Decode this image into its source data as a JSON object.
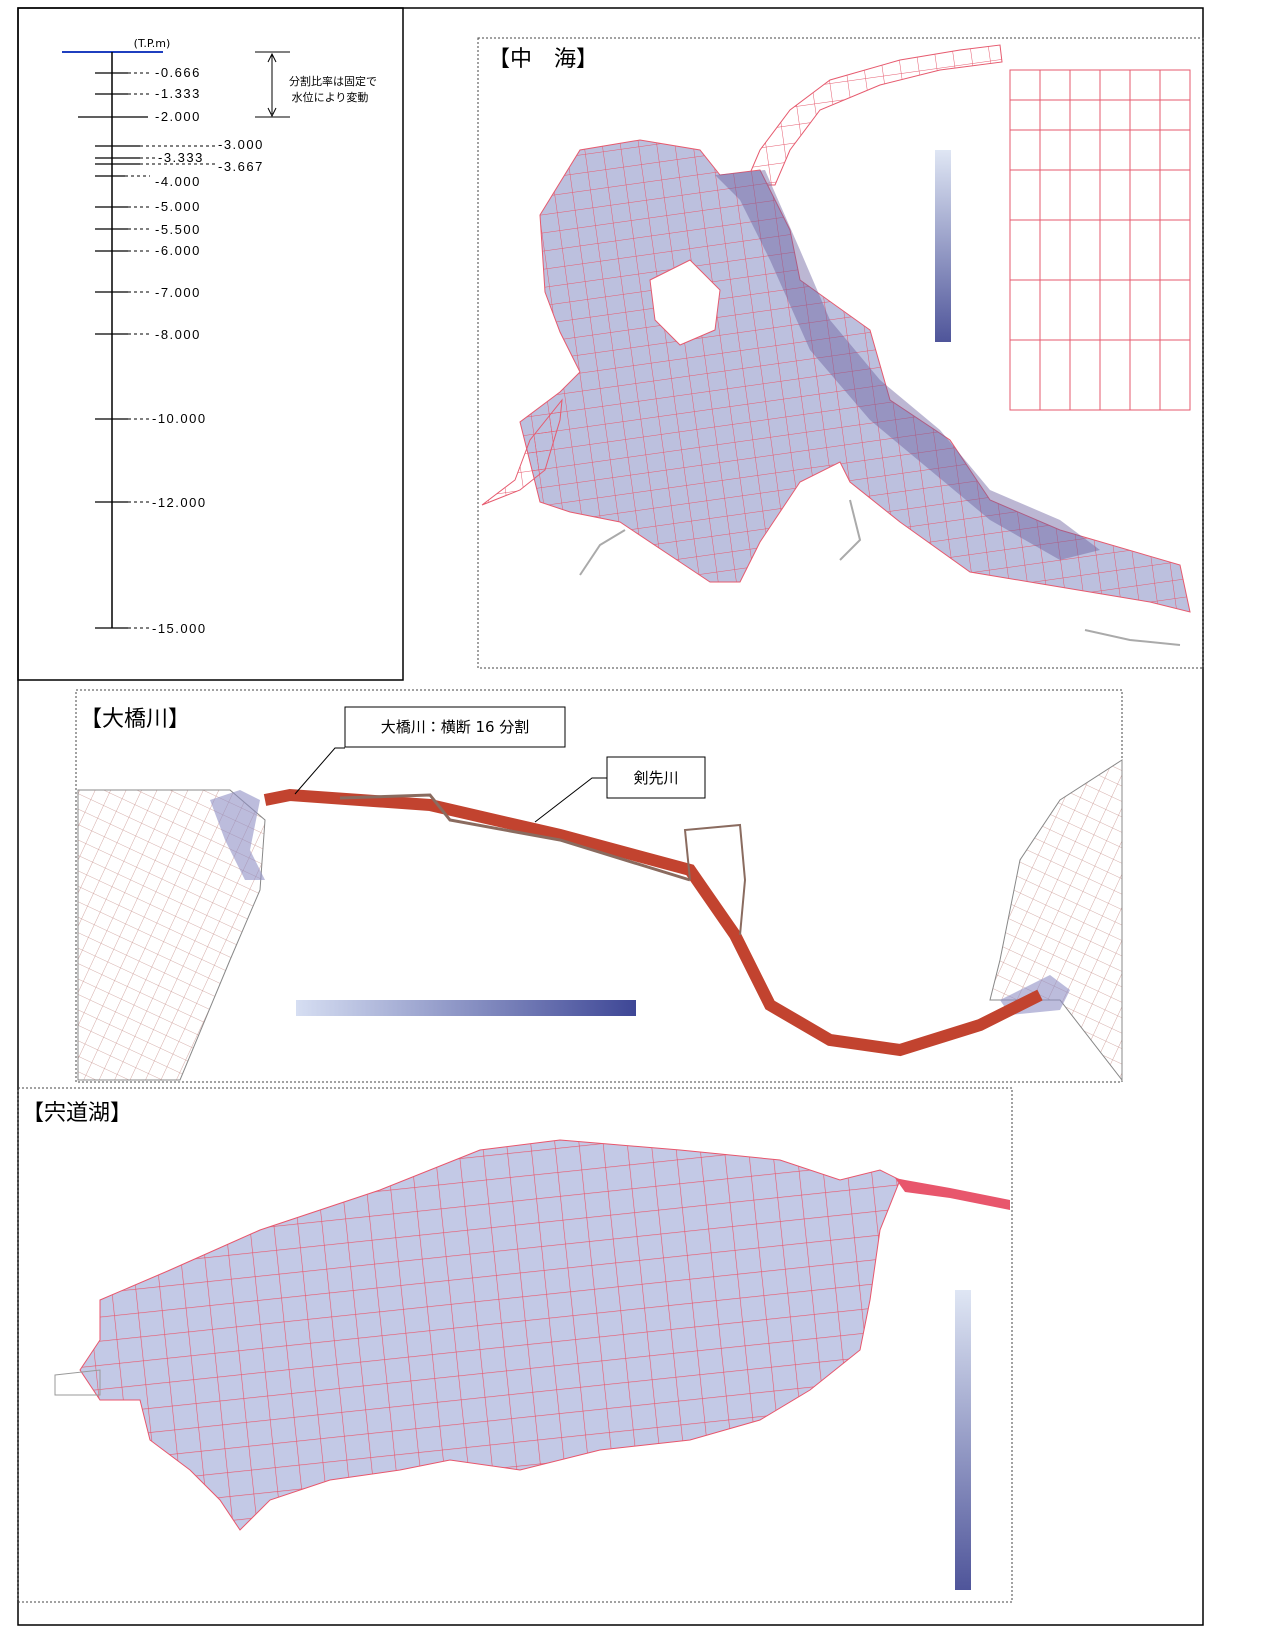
{
  "layer_scale": {
    "unit": "(T.P.m)",
    "levels": [
      "-0.666",
      "-1.333",
      "-2.000",
      "-3.000",
      "-3.333",
      "-3.667",
      "-4.000",
      "-5.000",
      "-5.500",
      "-6.000",
      "-7.000",
      "-8.000",
      "-10.000",
      "-12.000",
      "-15.000"
    ],
    "note": [
      "分割比率は固定で",
      "水位により変動"
    ]
  },
  "panels": {
    "nakaumi": {
      "title": "【中　海】"
    },
    "ohashi": {
      "title": "【大橋川】",
      "callouts": [
        "大橋川：横断 16 分割",
        "剣先川"
      ]
    },
    "shinjiko": {
      "title": "【宍道湖】"
    }
  }
}
